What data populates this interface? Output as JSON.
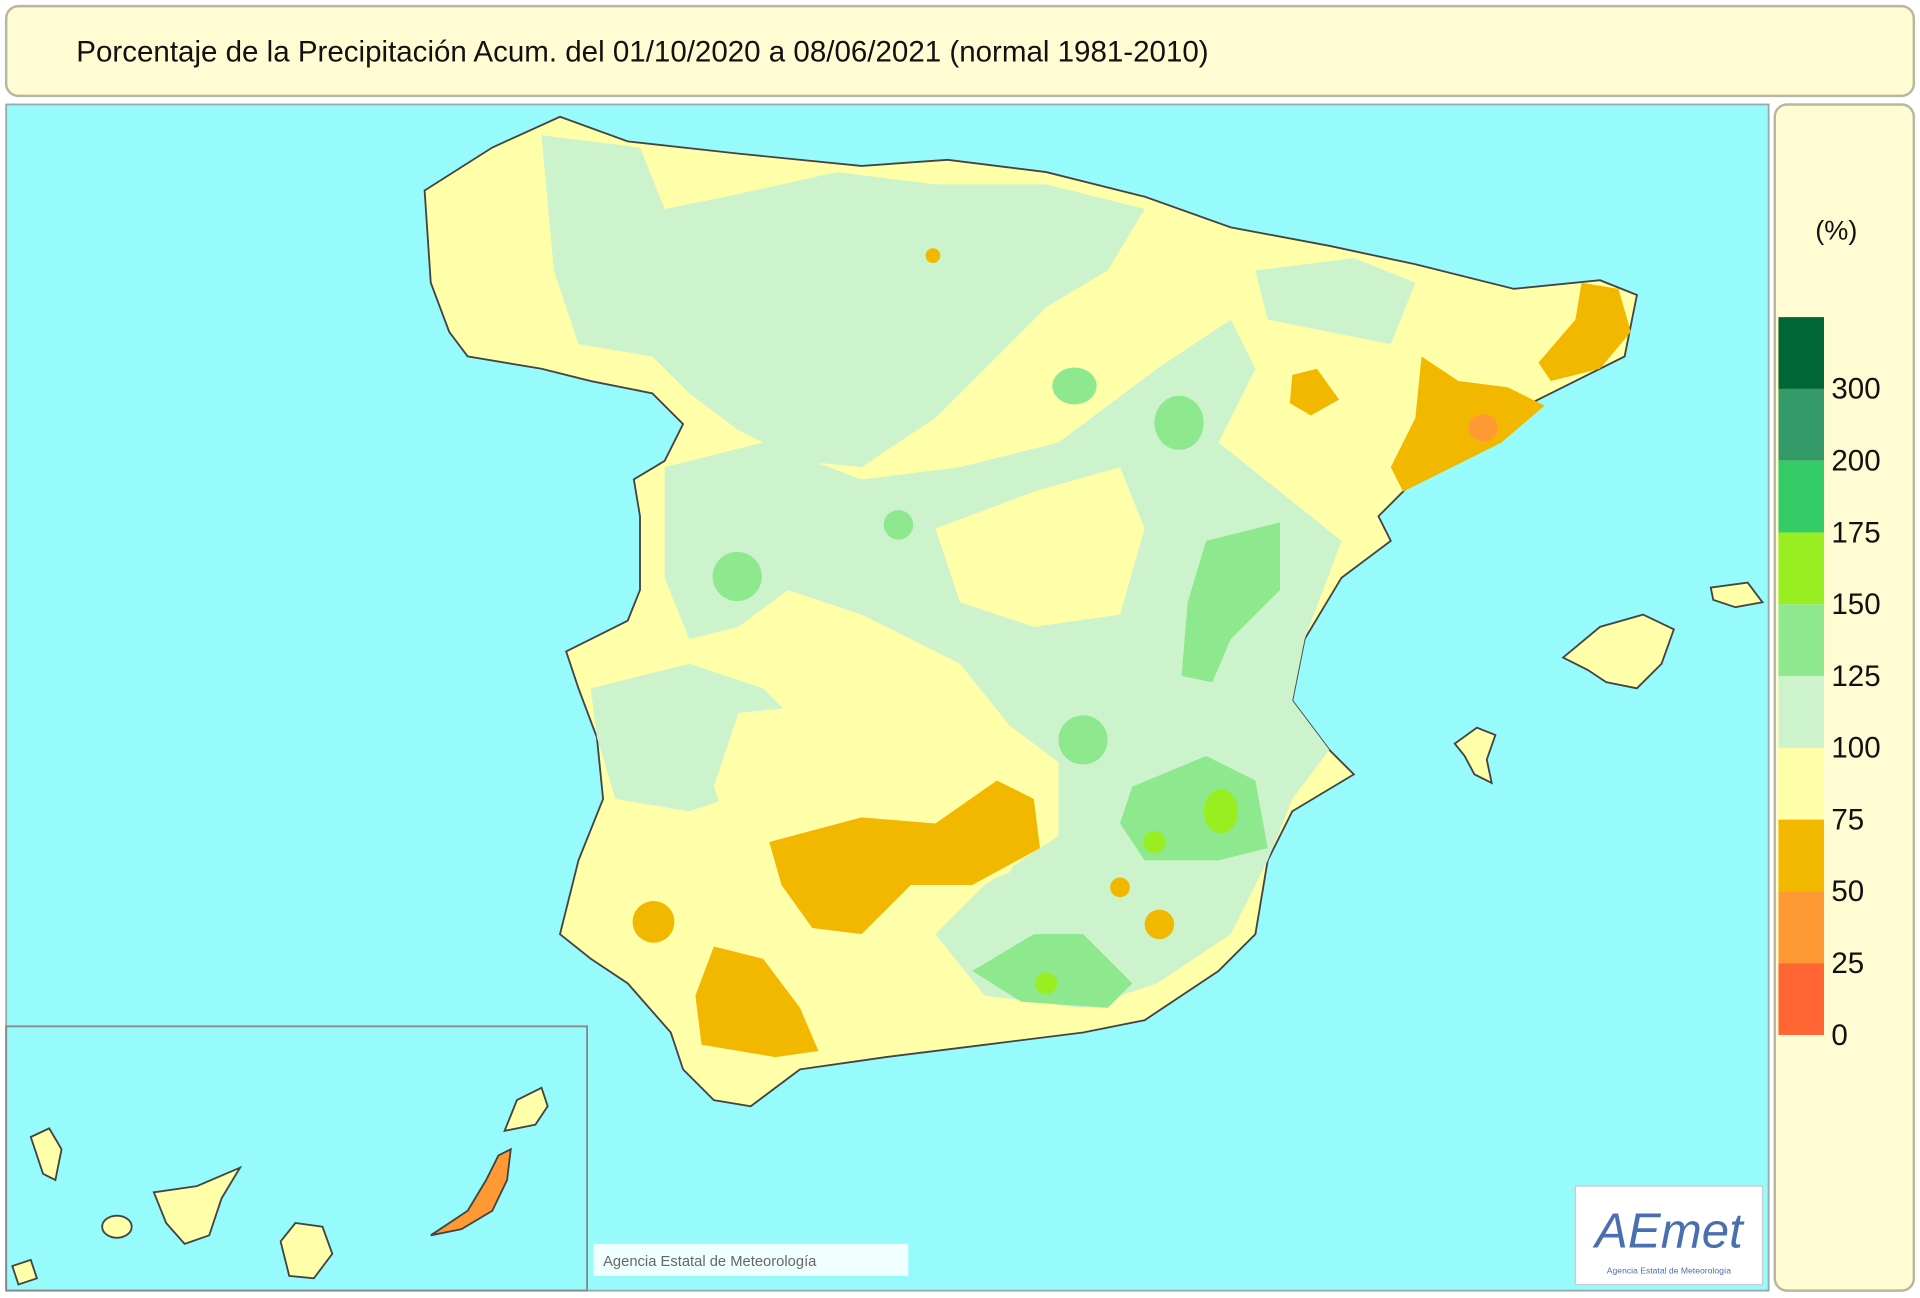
{
  "header": {
    "title": "Porcentaje de la Precipitación Acum. del 01/10/2020 a  08/06/2021  (normal 1981-2010)"
  },
  "legend": {
    "unit": "(%)",
    "classes": [
      {
        "label": 300,
        "color": "#006633"
      },
      {
        "label": 200,
        "color": "#339966"
      },
      {
        "label": 175,
        "color": "#33cc66"
      },
      {
        "label": 150,
        "color": "#99ee22"
      },
      {
        "label": 125,
        "color": "#8ee88e"
      },
      {
        "label": 100,
        "color": "#ccf3cc"
      },
      {
        "label": 75,
        "color": "#ffffaa"
      },
      {
        "label": 50,
        "color": "#f2b800"
      },
      {
        "label": 25,
        "color": "#ff9933"
      },
      {
        "label": 0,
        "color": "#ff6633"
      }
    ]
  },
  "credit": "Agencia Estatal de Meteorología",
  "logo": {
    "name": "AEmet",
    "caption": "Agencia Estatal de Meteorología"
  }
}
